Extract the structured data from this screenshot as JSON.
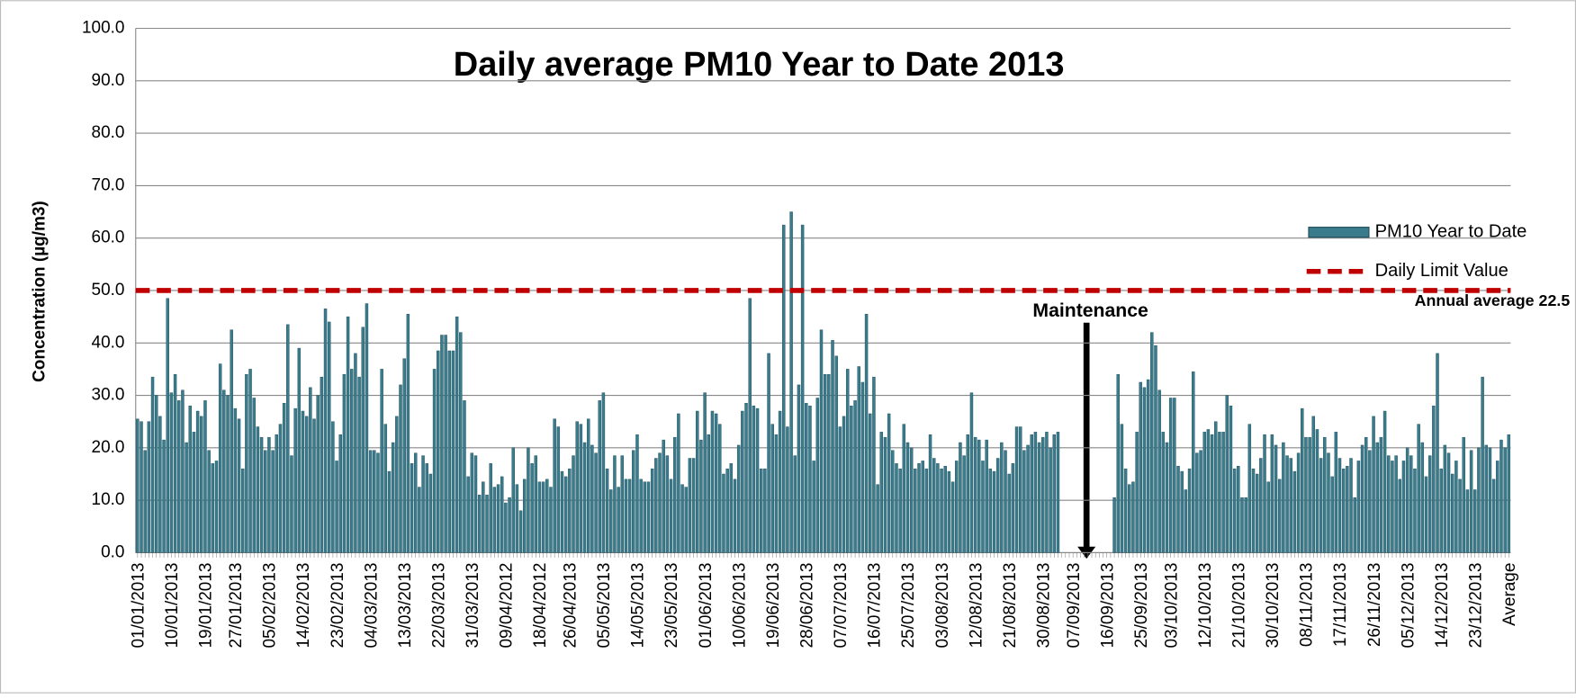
{
  "chart_data": {
    "type": "bar",
    "title": "Daily average PM10 Year to Date 2013",
    "y_label": "Concentration (µg/m3)",
    "categories": [
      "01/01/2013",
      null,
      null,
      null,
      null,
      null,
      null,
      null,
      null,
      "10/01/2013",
      null,
      null,
      null,
      null,
      null,
      null,
      null,
      null,
      "19/01/2013",
      null,
      null,
      null,
      null,
      null,
      null,
      null,
      "27/01/2013",
      null,
      null,
      null,
      null,
      null,
      null,
      null,
      null,
      "05/02/2013",
      null,
      null,
      null,
      null,
      null,
      null,
      null,
      null,
      "14/02/2013",
      null,
      null,
      null,
      null,
      null,
      null,
      null,
      null,
      "23/02/2013",
      null,
      null,
      null,
      null,
      null,
      null,
      null,
      null,
      "04/03/2013",
      null,
      null,
      null,
      null,
      null,
      null,
      null,
      null,
      "13/03/2013",
      null,
      null,
      null,
      null,
      null,
      null,
      null,
      null,
      "22/03/2013",
      null,
      null,
      null,
      null,
      null,
      null,
      null,
      null,
      "31/03/2013",
      null,
      null,
      null,
      null,
      null,
      null,
      null,
      null,
      "09/04/2012",
      null,
      null,
      null,
      null,
      null,
      null,
      null,
      null,
      "18/04/2012",
      null,
      null,
      null,
      null,
      null,
      null,
      null,
      "26/04/2013",
      null,
      null,
      null,
      null,
      null,
      null,
      null,
      null,
      "05/05/2013",
      null,
      null,
      null,
      null,
      null,
      null,
      null,
      null,
      "14/05/2013",
      null,
      null,
      null,
      null,
      null,
      null,
      null,
      null,
      "23/05/2013",
      null,
      null,
      null,
      null,
      null,
      null,
      null,
      null,
      "01/06/2013",
      null,
      null,
      null,
      null,
      null,
      null,
      null,
      null,
      "10/06/2013",
      null,
      null,
      null,
      null,
      null,
      null,
      null,
      null,
      "19/06/2013",
      null,
      null,
      null,
      null,
      null,
      null,
      null,
      null,
      "28/06/2013",
      null,
      null,
      null,
      null,
      null,
      null,
      null,
      null,
      "07/07/2013",
      null,
      null,
      null,
      null,
      null,
      null,
      null,
      null,
      "16/07/2013",
      null,
      null,
      null,
      null,
      null,
      null,
      null,
      null,
      "25/07/2013",
      null,
      null,
      null,
      null,
      null,
      null,
      null,
      null,
      "03/08/2013",
      null,
      null,
      null,
      null,
      null,
      null,
      null,
      null,
      "12/08/2013",
      null,
      null,
      null,
      null,
      null,
      null,
      null,
      null,
      "21/08/2013",
      null,
      null,
      null,
      null,
      null,
      null,
      null,
      null,
      "30/08/2013",
      null,
      null,
      null,
      null,
      null,
      null,
      null,
      "07/09/2013",
      null,
      null,
      null,
      null,
      null,
      null,
      null,
      null,
      "16/09/2013",
      null,
      null,
      null,
      null,
      null,
      null,
      null,
      null,
      "25/09/2013",
      null,
      null,
      null,
      null,
      null,
      null,
      null,
      "03/10/2013",
      null,
      null,
      null,
      null,
      null,
      null,
      null,
      null,
      "12/10/2013",
      null,
      null,
      null,
      null,
      null,
      null,
      null,
      null,
      "21/10/2013",
      null,
      null,
      null,
      null,
      null,
      null,
      null,
      null,
      "30/10/2013",
      null,
      null,
      null,
      null,
      null,
      null,
      null,
      null,
      "08/11/2013",
      null,
      null,
      null,
      null,
      null,
      null,
      null,
      null,
      "17/11/2013",
      null,
      null,
      null,
      null,
      null,
      null,
      null,
      null,
      "26/11/2013",
      null,
      null,
      null,
      null,
      null,
      null,
      null,
      null,
      "05/12/2013",
      null,
      null,
      null,
      null,
      null,
      null,
      null,
      null,
      "14/12/2013",
      null,
      null,
      null,
      null,
      null,
      null,
      null,
      null,
      "23/12/2013",
      null,
      null,
      null,
      null,
      null,
      null,
      null,
      null,
      "Average"
    ],
    "series": [
      {
        "name": "PM10 Year to Date",
        "color": "#3a7b8c",
        "values": [
          25.5,
          25,
          19.5,
          25,
          33.5,
          30,
          26,
          21.5,
          48.5,
          30.5,
          34,
          29,
          31,
          21,
          28,
          23,
          27,
          26,
          29,
          19.5,
          17,
          17.5,
          36,
          31,
          30,
          42.5,
          27.5,
          25.5,
          16,
          34,
          35,
          29.5,
          24,
          22,
          19.5,
          22,
          19.5,
          22.5,
          24.5,
          28.5,
          43.5,
          18.5,
          27.5,
          39,
          27,
          26,
          31.5,
          25.5,
          30,
          33.5,
          46.5,
          44,
          25,
          17.5,
          22.5,
          34,
          45,
          35,
          38,
          33.5,
          43,
          47.5,
          19.5,
          19.5,
          19,
          35,
          24.5,
          15.5,
          21,
          26,
          32,
          37,
          45.5,
          17,
          19,
          12.5,
          18.5,
          17,
          15,
          35,
          38.5,
          41.5,
          41.5,
          38.5,
          38.5,
          45,
          42,
          29,
          14.5,
          19,
          18.5,
          11,
          13.5,
          11,
          17,
          12.5,
          13,
          14.5,
          9.5,
          10.5,
          20,
          13,
          8,
          14,
          20,
          17,
          18.5,
          13.5,
          13.5,
          14,
          12.5,
          25.5,
          24,
          15.5,
          14.5,
          16,
          18.5,
          25,
          24.5,
          21,
          25.5,
          20.5,
          19,
          29,
          30.5,
          16,
          12,
          18.5,
          12.5,
          18.5,
          14,
          14,
          19.5,
          22.5,
          14,
          13.5,
          13.5,
          16,
          18,
          19,
          21.5,
          18.5,
          14,
          22,
          26.5,
          13,
          12.5,
          18,
          18,
          27,
          21.5,
          30.5,
          22.5,
          27,
          26.5,
          24.5,
          15,
          16,
          17,
          14,
          20.5,
          27,
          28.5,
          48.5,
          28,
          27.5,
          16,
          16,
          38,
          24.5,
          22.5,
          27,
          62.5,
          24,
          65,
          18.5,
          32,
          62.5,
          28.5,
          28,
          17.5,
          29.5,
          42.5,
          34,
          34,
          40.5,
          37.5,
          24,
          26,
          35,
          28,
          29,
          35.5,
          32.5,
          45.5,
          26.5,
          33.5,
          13,
          23,
          22,
          26.5,
          19.5,
          17,
          16,
          24.5,
          21,
          20,
          16,
          17,
          17.5,
          16,
          22.5,
          18,
          17,
          16,
          16.5,
          15.5,
          13.5,
          17.5,
          21,
          18.5,
          22.5,
          30.5,
          22,
          21.5,
          17.5,
          21.5,
          16,
          15.5,
          18,
          21,
          19.5,
          15,
          17,
          24,
          24,
          19.5,
          20.5,
          22.5,
          23,
          21,
          22,
          23,
          20,
          22.5,
          23,
          null,
          null,
          null,
          null,
          null,
          null,
          null,
          null,
          null,
          null,
          null,
          null,
          null,
          null,
          10.5,
          34,
          24.5,
          16,
          13,
          13.5,
          23,
          32.5,
          31.5,
          33,
          42,
          39.5,
          31,
          23,
          21,
          29.5,
          29.5,
          16.5,
          15.5,
          12,
          16,
          34.5,
          19,
          19.5,
          23,
          23.5,
          22.5,
          25,
          23,
          23,
          30,
          28,
          16,
          16.5,
          10.5,
          10.5,
          24.5,
          16,
          15,
          18,
          22.5,
          13.5,
          22.5,
          20.5,
          14,
          21,
          18.5,
          18,
          15.5,
          19,
          27.5,
          22,
          22,
          26,
          23.5,
          18,
          22,
          19,
          14.5,
          23,
          18,
          16,
          16.5,
          18,
          10.5,
          17.5,
          20.5,
          22,
          19.5,
          26,
          21,
          22,
          27,
          18.5,
          17.5,
          18.5,
          14,
          17.5,
          20,
          18.5,
          16,
          24.5,
          21,
          14.5,
          18.5,
          28,
          38,
          16,
          20.5,
          19,
          15,
          17.5,
          14,
          22,
          12,
          19.5,
          12,
          20,
          33.5,
          20.5,
          20,
          14,
          17.5,
          21.5,
          20,
          22.5
        ]
      }
    ],
    "reference_line": {
      "name": "Daily Limit Value",
      "value": 50,
      "color": "#c00000"
    },
    "annotations": {
      "maintenance": "Maintenance",
      "annual_average": "Annual average 22.5"
    },
    "ylim": [
      0,
      100
    ],
    "yticks": [
      {
        "value": 0,
        "label": "0.0"
      },
      {
        "value": 10,
        "label": "10.0"
      },
      {
        "value": 20,
        "label": "20.0"
      },
      {
        "value": 30,
        "label": "30.0"
      },
      {
        "value": 40,
        "label": "40.0"
      },
      {
        "value": 50,
        "label": "50.0"
      },
      {
        "value": 60,
        "label": "60.0"
      },
      {
        "value": 70,
        "label": "70.0"
      },
      {
        "value": 80,
        "label": "80.0"
      },
      {
        "value": 90,
        "label": "90.0"
      },
      {
        "value": 100,
        "label": "100.0"
      }
    ],
    "grid": true
  }
}
